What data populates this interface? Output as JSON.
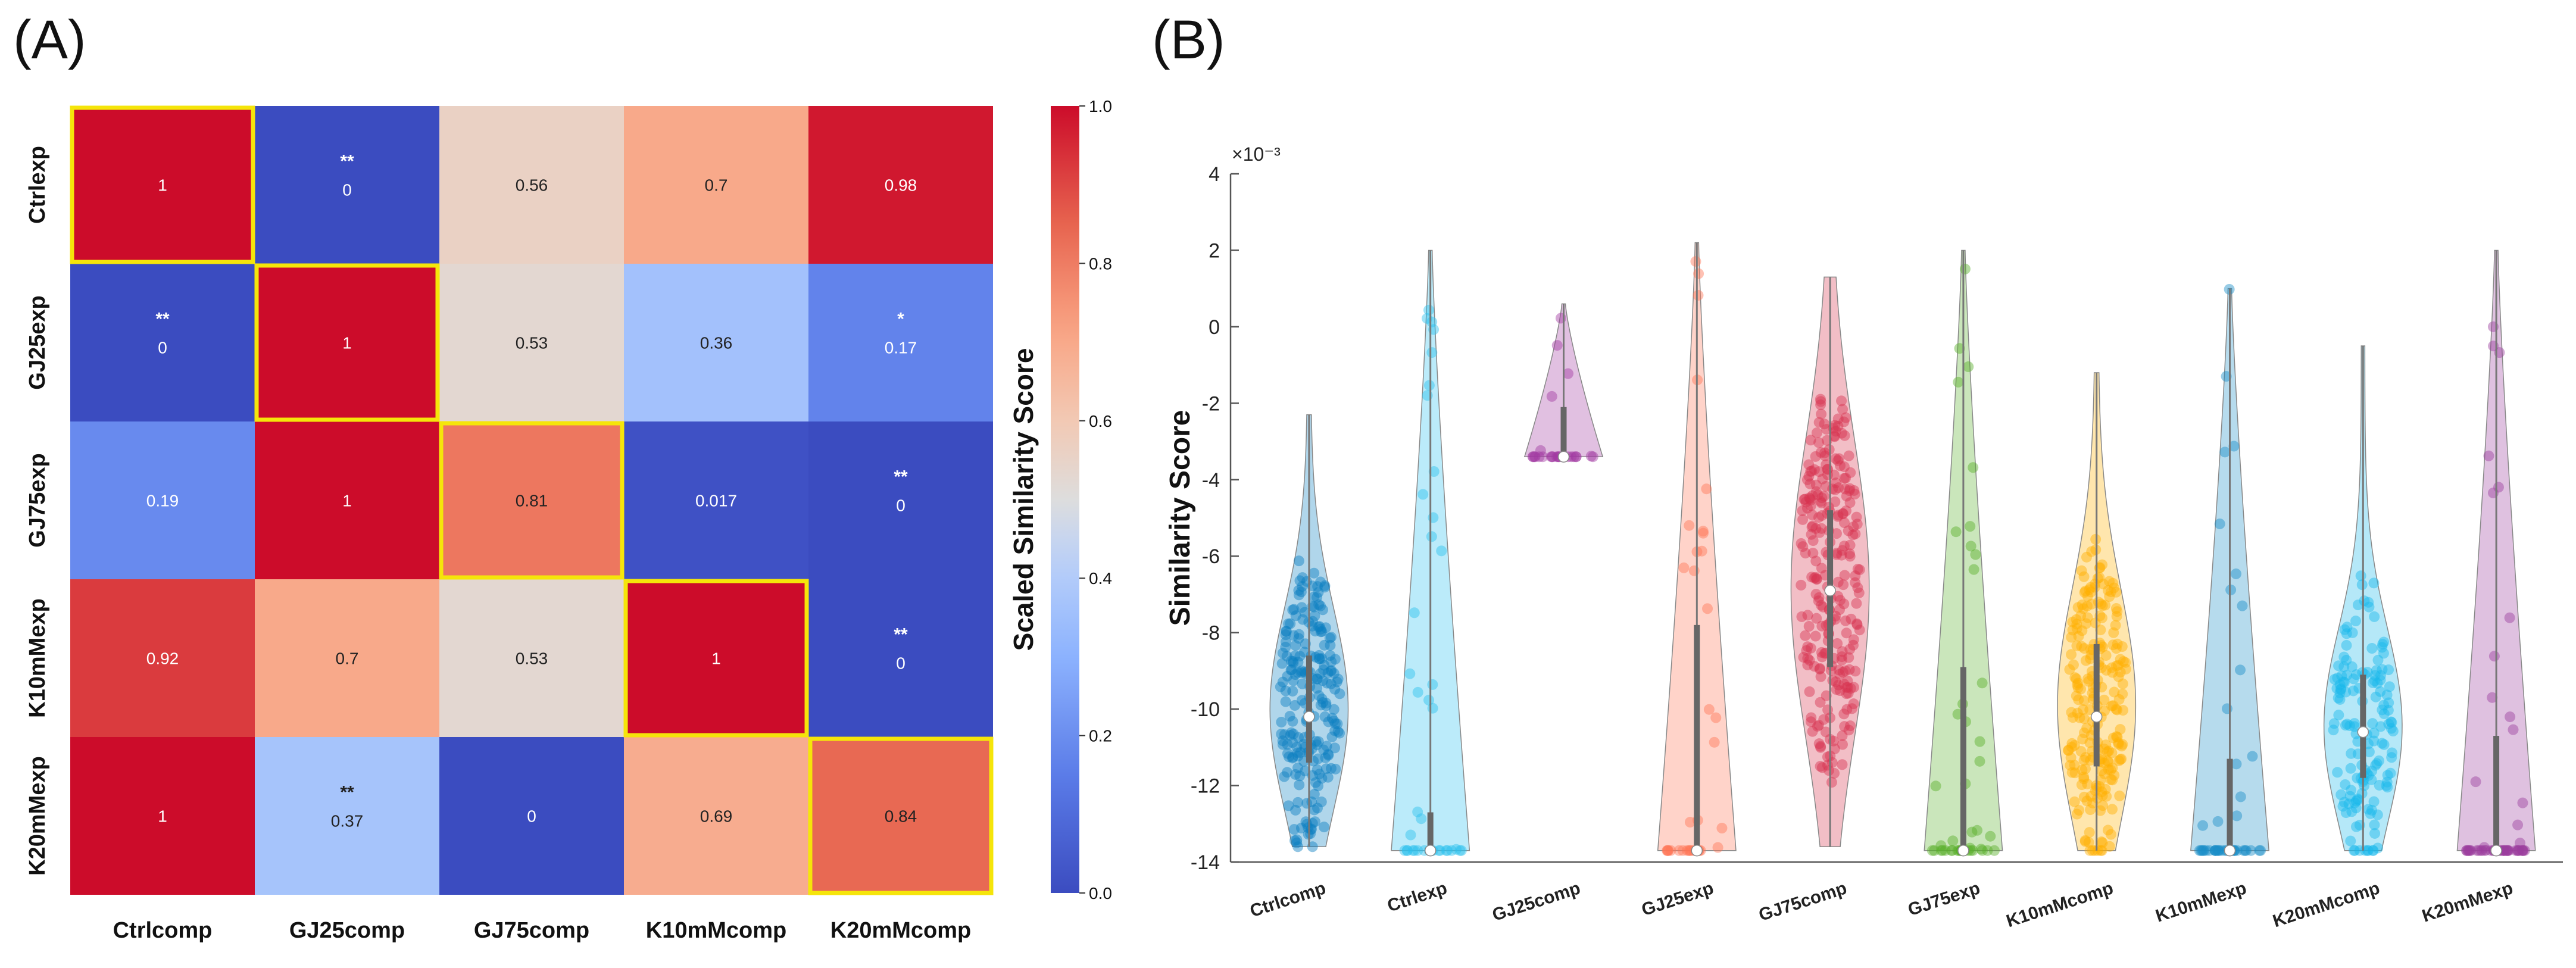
{
  "panel_labels": [
    "(A)",
    "(B)"
  ],
  "chart_data": [
    {
      "type": "heatmap",
      "panel": "(A)",
      "rows": [
        "Ctrlexp",
        "GJ25exp",
        "GJ75exp",
        "K10mMexp",
        "K20mMexp"
      ],
      "columns": [
        "Ctrlcomp",
        "GJ25comp",
        "GJ75comp",
        "K10mMcomp",
        "K20mMcomp"
      ],
      "values": [
        [
          1,
          0,
          0.56,
          0.7,
          0.98
        ],
        [
          0,
          1,
          0.53,
          0.36,
          0.17
        ],
        [
          0.19,
          1,
          0.81,
          0.017,
          0
        ],
        [
          0.92,
          0.7,
          0.53,
          1,
          0
        ],
        [
          1,
          0.37,
          0,
          0.69,
          0.84
        ]
      ],
      "value_labels": [
        [
          "1",
          "0",
          "0.56",
          "0.7",
          "0.98"
        ],
        [
          "0",
          "1",
          "0.53",
          "0.36",
          "0.17"
        ],
        [
          "0.19",
          "1",
          "0.81",
          "0.017",
          "0"
        ],
        [
          "0.92",
          "0.7",
          "0.53",
          "1",
          "0"
        ],
        [
          "1",
          "0.37",
          "0",
          "0.69",
          "0.84"
        ]
      ],
      "significance": [
        [
          "",
          "**",
          "",
          "",
          ""
        ],
        [
          "**",
          "",
          "",
          "",
          "*"
        ],
        [
          "",
          "",
          "",
          "",
          "**"
        ],
        [
          "",
          "",
          "",
          "",
          "**"
        ],
        [
          "",
          "**",
          "",
          "",
          ""
        ]
      ],
      "highlighted_diagonal": [
        [
          0,
          0
        ],
        [
          1,
          1
        ],
        [
          2,
          2
        ],
        [
          3,
          3
        ],
        [
          4,
          4
        ]
      ],
      "highlight_color": "#f5e50a",
      "colorbar": {
        "label": "Scaled Similarity Score",
        "range": [
          0.0,
          1.0
        ],
        "ticks": [
          "0.0",
          "0.2",
          "0.4",
          "0.6",
          "0.8",
          "1.0"
        ],
        "colormap": "coolwarm",
        "low_color": "#3b4cc0",
        "mid_color": "#dddddd",
        "high_color": "#b40426"
      }
    },
    {
      "type": "violin",
      "panel": "(B)",
      "ylabel": "Similarity Score",
      "y_scale_label": "×10⁻³",
      "ytick_labels": [
        "4",
        "2",
        "0",
        "-2",
        "-4",
        "-6",
        "-8",
        "-10",
        "-12",
        "-14"
      ],
      "ytick_values": [
        4,
        2,
        0,
        -2,
        -4,
        -6,
        -8,
        -10,
        -12,
        -14
      ],
      "ylim": [
        -14,
        4
      ],
      "units": "×1e-3",
      "categories": [
        "Ctrlcomp",
        "Ctrlexp",
        "GJ25comp",
        "GJ25exp",
        "GJ75comp",
        "GJ75exp",
        "K10mMcomp",
        "K10mMexp",
        "K20mMcomp",
        "K20mMexp"
      ],
      "series": [
        {
          "name": "Ctrlcomp",
          "color": "#0a7fc2",
          "min": -13.6,
          "max": -2.3,
          "median": -10.2,
          "q1": -11.4,
          "q3": -8.6,
          "n_points": 220
        },
        {
          "name": "Ctrlexp",
          "color": "#2cc0ee",
          "min": -13.7,
          "max": 2.0,
          "median": -13.7,
          "q1": -13.7,
          "q3": -12.7,
          "n_points": 40
        },
        {
          "name": "GJ25comp",
          "color": "#a23aa2",
          "min": -3.4,
          "max": 0.6,
          "median": -3.4,
          "q1": -3.4,
          "q3": -2.1,
          "n_points": 25
        },
        {
          "name": "GJ25exp",
          "color": "#ff7556",
          "min": -13.7,
          "max": 2.2,
          "median": -13.7,
          "q1": -13.7,
          "q3": -7.8,
          "n_points": 40
        },
        {
          "name": "GJ75comp",
          "color": "#d8344f",
          "min": -13.6,
          "max": 1.3,
          "median": -6.9,
          "q1": -8.9,
          "q3": -4.8,
          "n_points": 260
        },
        {
          "name": "GJ75exp",
          "color": "#59b02b",
          "min": -13.7,
          "max": 2.0,
          "median": -13.7,
          "q1": -13.7,
          "q3": -8.9,
          "n_points": 45
        },
        {
          "name": "K10mMcomp",
          "color": "#ffb000",
          "min": -13.7,
          "max": -1.2,
          "median": -10.2,
          "q1": -11.5,
          "q3": -8.3,
          "n_points": 230
        },
        {
          "name": "K10mMexp",
          "color": "#1b8ec8",
          "min": -13.7,
          "max": 1.0,
          "median": -13.7,
          "q1": -13.7,
          "q3": -11.3,
          "n_points": 45
        },
        {
          "name": "K20mMcomp",
          "color": "#19b7ea",
          "min": -13.7,
          "max": -0.5,
          "median": -10.6,
          "q1": -11.8,
          "q3": -9.1,
          "n_points": 150
        },
        {
          "name": "K20mMexp",
          "color": "#9b3f9e",
          "min": -13.7,
          "max": 2.0,
          "median": -13.7,
          "q1": -13.7,
          "q3": -10.7,
          "n_points": 55
        }
      ]
    }
  ]
}
